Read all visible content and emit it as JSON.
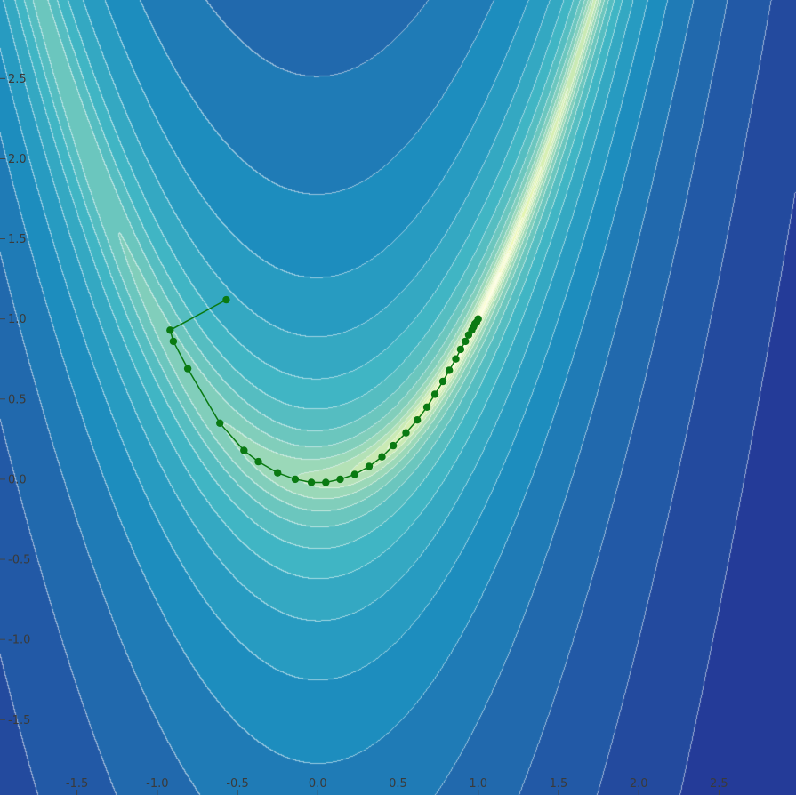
{
  "chart_data": {
    "type": "contour",
    "title": "",
    "xlabel": "",
    "ylabel": "",
    "xlim": [
      -1.98,
      2.98
    ],
    "ylim": [
      -1.97,
      2.99
    ],
    "grid": false,
    "function": "rosenbrock",
    "colormap": "YlGnBu (reversed, log-scaled levels)",
    "x_ticks": [
      {
        "value": -1.5,
        "label": "-1.5"
      },
      {
        "value": -1.0,
        "label": "-1.0"
      },
      {
        "value": -0.5,
        "label": "-0.5"
      },
      {
        "value": 0.0,
        "label": "0.0"
      },
      {
        "value": 0.5,
        "label": "0.5"
      },
      {
        "value": 1.0,
        "label": "1.0"
      },
      {
        "value": 1.5,
        "label": "1.5"
      },
      {
        "value": 2.0,
        "label": "2.0"
      },
      {
        "value": 2.5,
        "label": "2.5"
      }
    ],
    "y_ticks": [
      {
        "value": 2.5,
        "label": "2.5"
      },
      {
        "value": 2.0,
        "label": "2.0"
      },
      {
        "value": 1.5,
        "label": "1.5"
      },
      {
        "value": 1.0,
        "label": "1.0"
      },
      {
        "value": 0.5,
        "label": "0.5"
      },
      {
        "value": 0.0,
        "label": "0.0"
      },
      {
        "value": -0.5,
        "label": "-0.5"
      },
      {
        "value": -1.0,
        "label": "-1.0"
      },
      {
        "value": -1.5,
        "label": "-1.5"
      }
    ],
    "series": [
      {
        "color": "#0a7a12",
        "points": [
          [
            -0.57,
            1.12
          ],
          [
            -0.92,
            0.93
          ],
          [
            -0.9,
            0.86
          ],
          [
            -0.81,
            0.69
          ],
          [
            -0.61,
            0.35
          ],
          [
            -0.46,
            0.18
          ],
          [
            -0.37,
            0.11
          ],
          [
            -0.25,
            0.04
          ],
          [
            -0.14,
            0.0
          ],
          [
            -0.04,
            -0.02
          ],
          [
            0.05,
            -0.02
          ],
          [
            0.14,
            0.0
          ],
          [
            0.23,
            0.03
          ],
          [
            0.32,
            0.08
          ],
          [
            0.4,
            0.14
          ],
          [
            0.47,
            0.21
          ],
          [
            0.55,
            0.29
          ],
          [
            0.62,
            0.37
          ],
          [
            0.68,
            0.45
          ],
          [
            0.73,
            0.53
          ],
          [
            0.78,
            0.61
          ],
          [
            0.82,
            0.68
          ],
          [
            0.86,
            0.75
          ],
          [
            0.89,
            0.81
          ],
          [
            0.92,
            0.86
          ],
          [
            0.94,
            0.9
          ],
          [
            0.96,
            0.93
          ],
          [
            0.97,
            0.95
          ],
          [
            0.98,
            0.97
          ],
          [
            0.99,
            0.98
          ],
          [
            1.0,
            1.0
          ]
        ]
      }
    ]
  }
}
